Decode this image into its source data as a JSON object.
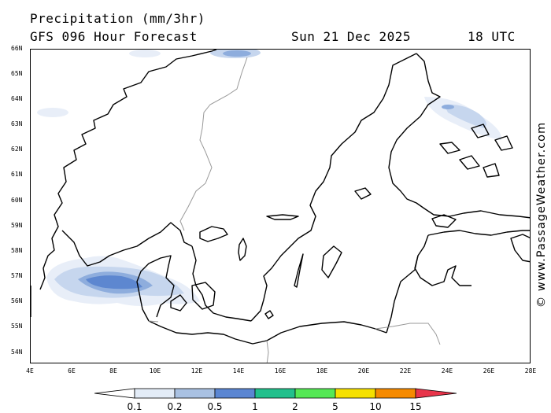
{
  "header": {
    "title": "Precipitation (mm/3hr)",
    "subtitle": "GFS 096 Hour Forecast",
    "date": "Sun 21 Dec 2025",
    "time": "18 UTC"
  },
  "map": {
    "lat_labels": [
      "66N",
      "65N",
      "64N",
      "63N",
      "62N",
      "61N",
      "60N",
      "59N",
      "58N",
      "57N",
      "56N",
      "55N",
      "54N"
    ],
    "lon_labels": [
      "4E",
      "6E",
      "8E",
      "10E",
      "12E",
      "14E",
      "16E",
      "18E",
      "20E",
      "22E",
      "24E",
      "26E",
      "28E"
    ],
    "precip_colors": {
      "0.1": "#e8eef8",
      "0.2": "#c6d6ee",
      "0.5": "#8eaddd",
      "1": "#5d87d0"
    }
  },
  "legend": {
    "labels": [
      "0.1",
      "0.2",
      "0.5",
      "1",
      "2",
      "5",
      "10",
      "15"
    ],
    "colors": [
      "#ffffff",
      "#e3ecf7",
      "#a9c1e2",
      "#5b86d2",
      "#22c08c",
      "#55e855",
      "#f5e000",
      "#f58a00",
      "#e8344a"
    ]
  },
  "watermark": "© www.PassageWeather.com"
}
